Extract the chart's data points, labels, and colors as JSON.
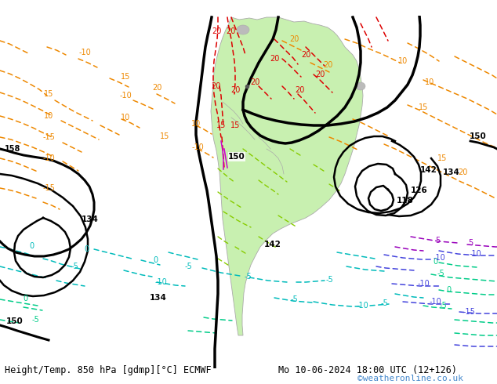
{
  "title_left": "Height/Temp. 850 hPa [gdmp][°C] ECMWF",
  "title_right": "Mo 10-06-2024 18:00 UTC (12+126)",
  "watermark": "©weatheronline.co.uk",
  "fig_width": 6.34,
  "fig_height": 4.9,
  "dpi": 100,
  "ocean_color": "#d8d8d8",
  "sa_color": "#c8f0b0",
  "land_color": "#d0d0d0",
  "border_color": "#aaaaaa",
  "text_fontsize": 8.5,
  "watermark_fontsize": 8,
  "watermark_color": "#4488cc"
}
